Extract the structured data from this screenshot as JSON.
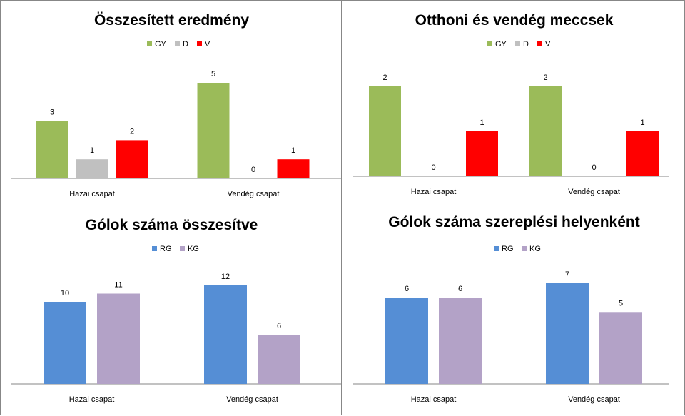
{
  "colors": {
    "GY": "#9bbb59",
    "D": "#c0c0c0",
    "V": "#ff0000",
    "RG": "#558ed5",
    "KG": "#b3a2c7",
    "axis": "#868686",
    "border": "#878787"
  },
  "chart_data": [
    {
      "type": "bar",
      "title": "Összesített eredmény",
      "categories": [
        "Hazai csapat",
        "Vendég csapat"
      ],
      "series": [
        {
          "name": "GY",
          "values": [
            3,
            5
          ]
        },
        {
          "name": "D",
          "values": [
            1,
            0
          ]
        },
        {
          "name": "V",
          "values": [
            2,
            1
          ]
        }
      ],
      "ylim": [
        0,
        5
      ],
      "legend": "top",
      "grid": false
    },
    {
      "type": "bar",
      "title": "Otthoni és vendég meccsek",
      "categories": [
        "Hazai csapat",
        "Vendég csapat"
      ],
      "series": [
        {
          "name": "GY",
          "values": [
            2,
            2
          ]
        },
        {
          "name": "D",
          "values": [
            0,
            0
          ]
        },
        {
          "name": "V",
          "values": [
            1,
            1
          ]
        }
      ],
      "ylim": [
        0,
        2
      ],
      "legend": "top",
      "grid": false
    },
    {
      "type": "bar",
      "title": "Gólok száma összesítve",
      "categories": [
        "Hazai csapat",
        "Vendég csapat"
      ],
      "series": [
        {
          "name": "RG",
          "values": [
            10,
            12
          ]
        },
        {
          "name": "KG",
          "values": [
            11,
            6
          ]
        }
      ],
      "ylim": [
        0,
        12
      ],
      "legend": "top",
      "grid": false
    },
    {
      "type": "bar",
      "title": "Gólok száma szereplési helyenként",
      "categories": [
        "Hazai csapat",
        "Vendég csapat"
      ],
      "series": [
        {
          "name": "RG",
          "values": [
            6,
            7
          ]
        },
        {
          "name": "KG",
          "values": [
            6,
            5
          ]
        }
      ],
      "ylim": [
        0,
        7
      ],
      "legend": "top",
      "grid": false
    }
  ]
}
